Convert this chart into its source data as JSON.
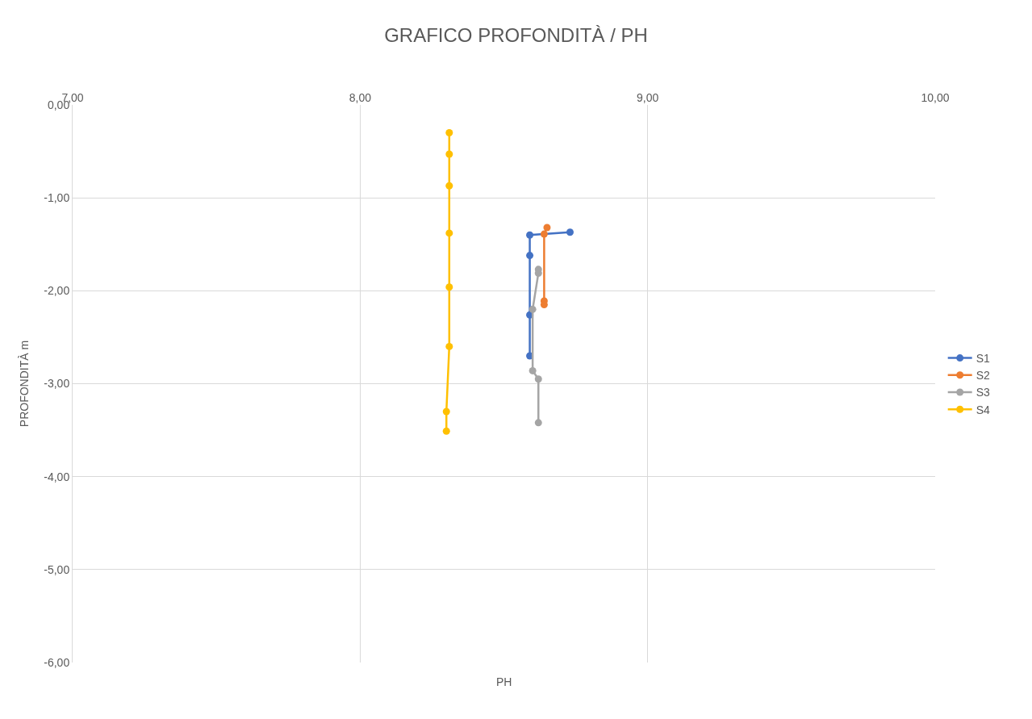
{
  "chart_data": {
    "type": "line",
    "title": "GRAFICO PROFONDITÀ / PH",
    "xlabel": "PH",
    "ylabel": "PROFONDITÀ m",
    "xlim": [
      7,
      10
    ],
    "xticks": [
      {
        "value": 7,
        "label": "7,00"
      },
      {
        "value": 8,
        "label": "8,00"
      },
      {
        "value": 9,
        "label": "9,00"
      },
      {
        "value": 10,
        "label": "10,00"
      }
    ],
    "ylim": [
      -6,
      0
    ],
    "yticks": [
      {
        "value": 0,
        "label": "0,00"
      },
      {
        "value": -1,
        "label": "-1,00"
      },
      {
        "value": -2,
        "label": "-2,00"
      },
      {
        "value": -3,
        "label": "-3,00"
      },
      {
        "value": -4,
        "label": "-4,00"
      },
      {
        "value": -5,
        "label": "-5,00"
      },
      {
        "value": -6,
        "label": "-6,00"
      }
    ],
    "grid": true,
    "legend": "right",
    "marker": "circle",
    "line_style": "solid",
    "series": [
      {
        "name": "S1",
        "color": "#4472c4",
        "x": [
          8.73,
          8.59,
          8.59,
          8.59,
          8.59
        ],
        "values": [
          -1.37,
          -1.4,
          -1.62,
          -2.26,
          -2.7
        ]
      },
      {
        "name": "S2",
        "color": "#ed7d31",
        "x": [
          8.65,
          8.64,
          8.64,
          8.64
        ],
        "values": [
          -1.32,
          -1.39,
          -2.11,
          -2.15
        ]
      },
      {
        "name": "S3",
        "color": "#a5a5a5",
        "x": [
          8.62,
          8.62,
          8.6,
          8.6,
          8.62,
          8.62
        ],
        "values": [
          -1.77,
          -1.81,
          -2.2,
          -2.86,
          -2.95,
          -3.42
        ]
      },
      {
        "name": "S4",
        "color": "#ffc000",
        "x": [
          8.31,
          8.31,
          8.31,
          8.31,
          8.31,
          8.31,
          8.3,
          8.3
        ],
        "values": [
          -0.3,
          -0.53,
          -0.87,
          -1.38,
          -1.96,
          -2.6,
          -3.3,
          -3.51
        ]
      }
    ]
  }
}
